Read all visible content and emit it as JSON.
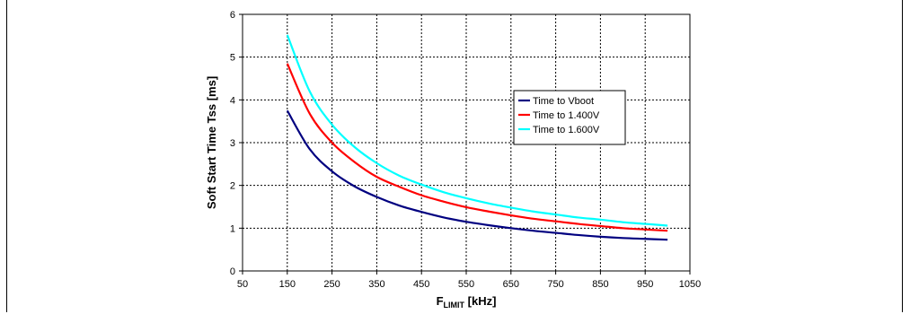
{
  "chart_data": {
    "type": "line",
    "title": "",
    "xlabel": "F",
    "xlabel_sub": "LIMIT",
    "xlabel_unit": " [kHz]",
    "ylabel": "Soft Start Time Tss [ms]",
    "xlim": [
      50,
      1050
    ],
    "ylim": [
      0,
      6
    ],
    "xticks": [
      50,
      150,
      250,
      350,
      450,
      550,
      650,
      750,
      850,
      950,
      1050
    ],
    "yticks": [
      0,
      1,
      2,
      3,
      4,
      5,
      6
    ],
    "grid": true,
    "legend_position": "center-right",
    "x": [
      150,
      200,
      250,
      300,
      350,
      400,
      450,
      500,
      550,
      600,
      650,
      700,
      750,
      800,
      850,
      900,
      950,
      1000
    ],
    "series": [
      {
        "name": "Time to Vboot",
        "color": "#000080",
        "values": [
          3.75,
          2.85,
          2.33,
          1.98,
          1.73,
          1.53,
          1.38,
          1.25,
          1.15,
          1.07,
          1.0,
          0.94,
          0.89,
          0.84,
          0.8,
          0.77,
          0.75,
          0.73
        ]
      },
      {
        "name": "Time to 1.400V",
        "color": "#ff0000",
        "values": [
          4.85,
          3.68,
          3.0,
          2.55,
          2.2,
          1.97,
          1.77,
          1.62,
          1.49,
          1.39,
          1.3,
          1.22,
          1.16,
          1.1,
          1.05,
          1.0,
          0.97,
          0.94
        ]
      },
      {
        "name": "Time to 1.600V",
        "color": "#00ffff",
        "values": [
          5.52,
          4.2,
          3.42,
          2.9,
          2.52,
          2.23,
          2.02,
          1.84,
          1.7,
          1.58,
          1.48,
          1.39,
          1.32,
          1.25,
          1.2,
          1.14,
          1.1,
          1.06
        ]
      }
    ]
  }
}
